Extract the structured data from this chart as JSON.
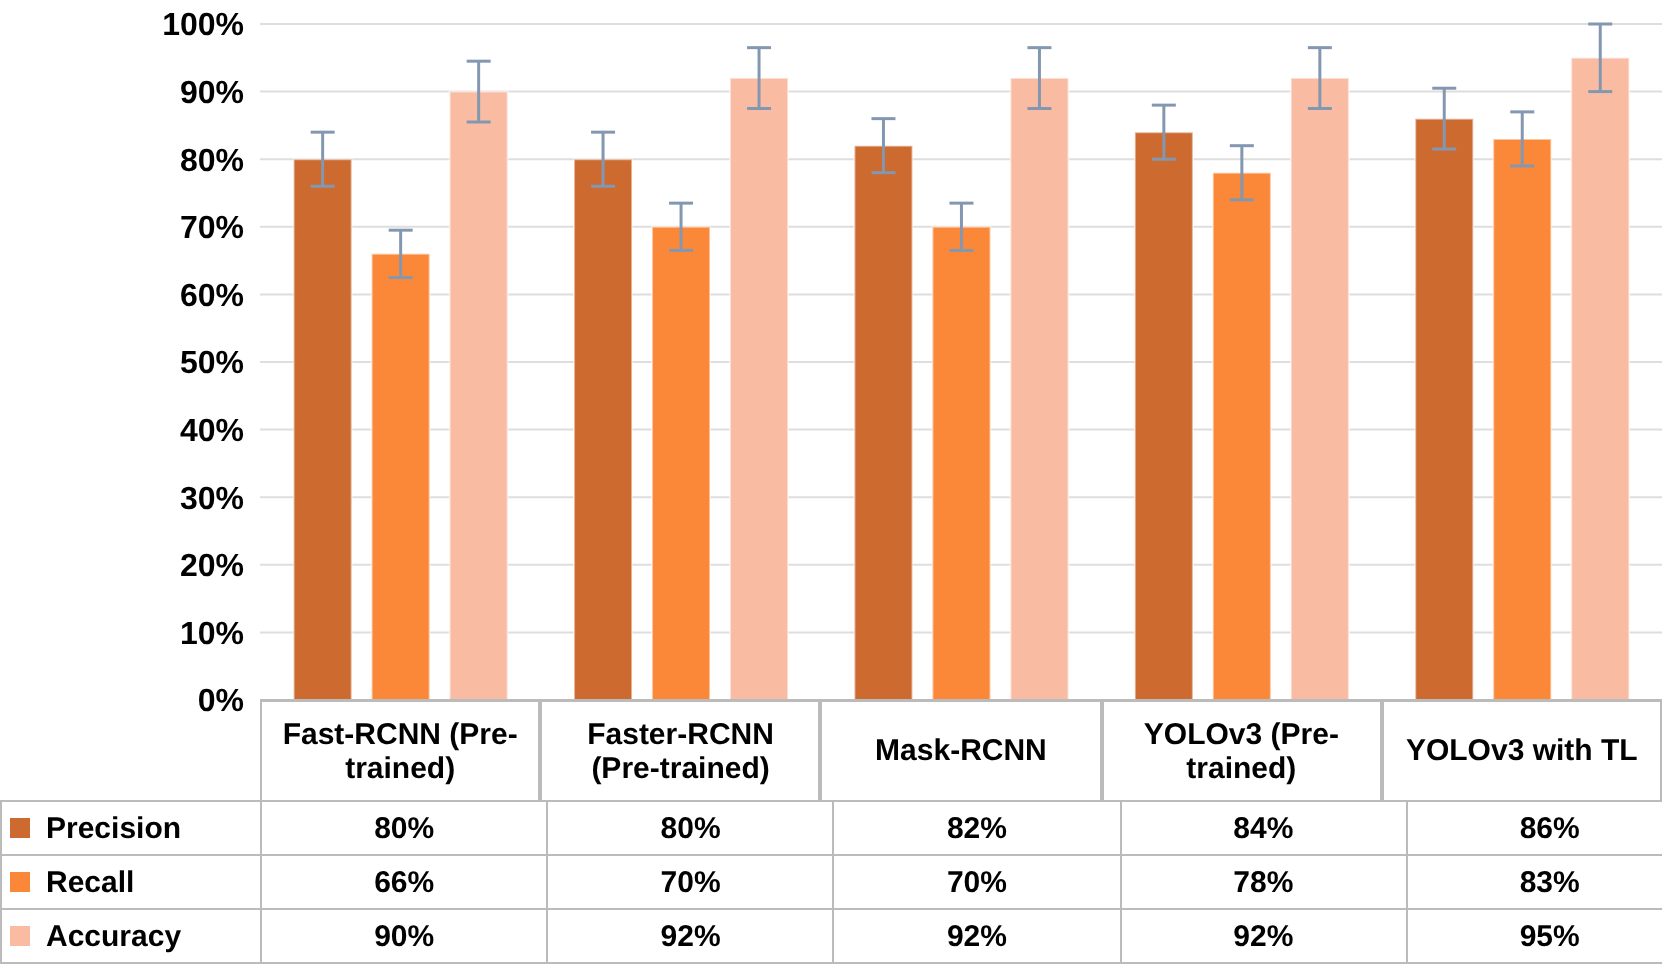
{
  "chart_data": {
    "type": "bar",
    "categories": [
      "Fast-RCNN (Pre-trained)",
      "Faster-RCNN (Pre-trained)",
      "Mask-RCNN",
      "YOLOv3 (Pre-trained)",
      "YOLOv3 with TL"
    ],
    "series": [
      {
        "name": "Precision",
        "color": "#cc6a30",
        "values": [
          80,
          80,
          82,
          84,
          86
        ],
        "errors": [
          4,
          4,
          4,
          4,
          4.5
        ],
        "value_labels": [
          "80%",
          "80%",
          "82%",
          "84%",
          "86%"
        ]
      },
      {
        "name": "Recall",
        "color": "#fb8838",
        "values": [
          66,
          70,
          70,
          78,
          83
        ],
        "errors": [
          3.5,
          3.5,
          3.5,
          4,
          4
        ],
        "value_labels": [
          "66%",
          "70%",
          "70%",
          "78%",
          "83%"
        ]
      },
      {
        "name": "Accuracy",
        "color": "#f9bca3",
        "values": [
          90,
          92,
          92,
          92,
          95
        ],
        "errors": [
          4.5,
          4.5,
          4.5,
          4.5,
          5
        ],
        "value_labels": [
          "90%",
          "92%",
          "92%",
          "92%",
          "95%"
        ]
      }
    ],
    "ylim": [
      0,
      100
    ],
    "yticks": [
      {
        "value": 0,
        "label": "0%"
      },
      {
        "value": 10,
        "label": "10%"
      },
      {
        "value": 20,
        "label": "20%"
      },
      {
        "value": 30,
        "label": "30%"
      },
      {
        "value": 40,
        "label": "40%"
      },
      {
        "value": 50,
        "label": "50%"
      },
      {
        "value": 60,
        "label": "60%"
      },
      {
        "value": 70,
        "label": "70%"
      },
      {
        "value": 80,
        "label": "80%"
      },
      {
        "value": 90,
        "label": "90%"
      },
      {
        "value": 100,
        "label": "100%"
      }
    ],
    "grid": "y",
    "legend": "bottom"
  }
}
